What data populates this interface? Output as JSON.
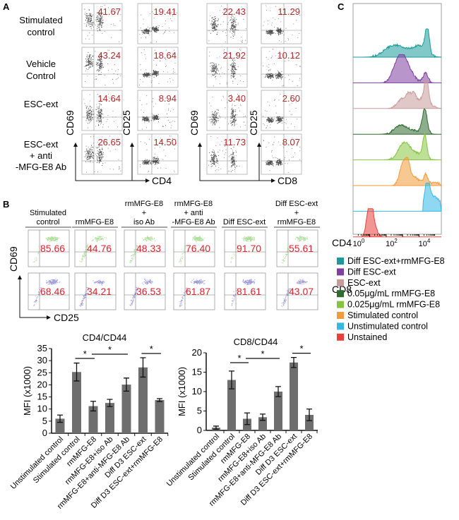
{
  "panel_a": {
    "label": "A",
    "rows": [
      {
        "label_lines": [
          "Stimulated",
          "control"
        ],
        "values": [
          "41.67",
          "19.41",
          "22.43",
          "11.29"
        ]
      },
      {
        "label_lines": [
          "Vehicle",
          "Control"
        ],
        "values": [
          "43.24",
          "18.64",
          "21.92",
          "10.12"
        ]
      },
      {
        "label_lines": [
          "ESC-ext"
        ],
        "values": [
          "14.64",
          "8.94",
          "3.40",
          "2.60"
        ]
      },
      {
        "label_lines": [
          "ESC-ext",
          "+ anti",
          "-MFG-E8 Ab"
        ],
        "values": [
          "26.65",
          "14.50",
          "11.73",
          "8.07"
        ]
      }
    ],
    "axes": {
      "cd69": "CD69",
      "cd25": "CD25",
      "cd4": "CD4",
      "cd8": "CD8"
    }
  },
  "panel_b": {
    "label": "B",
    "columns": [
      {
        "header_lines": [
          "Stimulated",
          "control"
        ],
        "cd4": "85.66",
        "cd8": "68.46"
      },
      {
        "header_lines": [
          "rmMFG-E8"
        ],
        "cd4": "44.76",
        "cd8": "34.21"
      },
      {
        "header_lines": [
          "rmMFG-E8",
          "+",
          "iso Ab"
        ],
        "cd4": "48.33",
        "cd8": "36.53"
      },
      {
        "header_lines": [
          "rmMFG-E8",
          "+ anti",
          "-MFG-E8 Ab"
        ],
        "cd4": "76.40",
        "cd8": "61.87"
      },
      {
        "header_lines": [
          "Diff ESC-ext"
        ],
        "cd4": "91.70",
        "cd8": "81.61"
      },
      {
        "header_lines": [
          "Diff ESC-ext",
          "+",
          "rmMFG-E8"
        ],
        "cd4": "55.61",
        "cd8": "43.07"
      }
    ],
    "row_labels": [
      "CD4",
      "CD8"
    ],
    "y_axis": "CD69",
    "x_axis": "CD25",
    "colors": {
      "cd4": "#6cc24a",
      "cd8": "#4b4bb8"
    }
  },
  "chart_data": [
    {
      "type": "bar",
      "title": "CD4/CD44",
      "xlabel": "",
      "ylabel": "MFI (x1000)",
      "ylim": [
        0,
        35
      ],
      "yticks": [
        0,
        5,
        10,
        15,
        20,
        25,
        30,
        35
      ],
      "categories": [
        "Unstimulated control",
        "Stimulated control",
        "rmMFG-E8",
        "rmMFG-E8+iso Ab",
        "rmMFG-E8+anti-MFG-E8 Ab",
        "Diff D3 ESC-ext",
        "Diff D3 ESC-ext+rmMFG-E8"
      ],
      "values": [
        6.0,
        25.3,
        11.2,
        12.5,
        20.1,
        27.2,
        13.7
      ],
      "errors": [
        1.5,
        3.7,
        2.0,
        1.5,
        2.7,
        4.0,
        0.6
      ],
      "significance": [
        [
          1,
          2
        ],
        [
          2,
          4
        ],
        [
          5,
          6
        ]
      ],
      "significance_label": "*",
      "bar_color": "#6e6e6e"
    },
    {
      "type": "bar",
      "title": "CD8/CD44",
      "xlabel": "",
      "ylabel": "MFI (x1000)",
      "ylim": [
        0,
        20
      ],
      "yticks": [
        0,
        5,
        10,
        15,
        20
      ],
      "categories": [
        "Unstimulated control",
        "Stimulated control",
        "rmMFG-E8",
        "rmMFG-E8+iso Ab",
        "rmMFG-E8+anti-MFG-E8 Ab",
        "Diff D3 ESC-ext",
        "Diff D3 ESC-ext+rmMFG-E8"
      ],
      "values": [
        0.7,
        13.0,
        3.0,
        3.4,
        10.0,
        17.5,
        4.0
      ],
      "errors": [
        0.4,
        2.3,
        1.5,
        0.8,
        1.3,
        1.3,
        1.5
      ],
      "significance": [
        [
          1,
          2
        ],
        [
          2,
          4
        ],
        [
          5,
          6
        ]
      ],
      "significance_label": "*",
      "bar_color": "#6e6e6e"
    }
  ],
  "panel_c": {
    "label": "C",
    "x_ticks": [
      {
        "base": "10",
        "exp": "0"
      },
      {
        "base": "10",
        "exp": "2"
      },
      {
        "base": "10",
        "exp": "4"
      }
    ],
    "legend": [
      {
        "label": "Diff ESC-ext+rmMFG-E8",
        "color": "#1a9a9a"
      },
      {
        "label": "Diff ESC-ext",
        "color": "#7e3fa0"
      },
      {
        "label": "ESC-ext",
        "color": "#c99a9a"
      },
      {
        "label": "0.05μg/mL rmMFG-E8",
        "color": "#2f6a2f"
      },
      {
        "label": "0.025μg/mL rmMFG-E8",
        "color": "#86c440"
      },
      {
        "label": "Stimulated control",
        "color": "#f39a3a"
      },
      {
        "label": "Unstimulated control",
        "color": "#33b8e8"
      },
      {
        "label": "Unstained",
        "color": "#e8403a"
      }
    ]
  }
}
